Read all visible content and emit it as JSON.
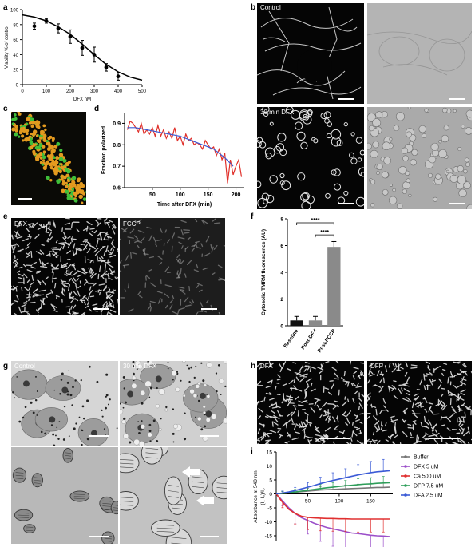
{
  "panels": {
    "a": "a",
    "b": "b",
    "c": "c",
    "d": "d",
    "e": "e",
    "f": "f",
    "g": "g",
    "h": "h",
    "i": "i"
  },
  "labels": {
    "b_top": "Control",
    "b_bottom": "30 min DFX",
    "e_left": "DFX",
    "e_right": "FCCP",
    "g_left": "Control",
    "g_right": "30 min DFX",
    "h_left": "DFA",
    "h_right": "DFP"
  },
  "chart_data": [
    {
      "panel": "a",
      "type": "scatter",
      "xlabel": "DFX nM",
      "ylabel": "Viability % of control",
      "xlim": [
        0,
        500
      ],
      "ylim": [
        0,
        100
      ],
      "xticks": [
        0,
        100,
        200,
        300,
        400,
        500
      ],
      "yticks": [
        0,
        20,
        40,
        60,
        80,
        100
      ],
      "points": [
        {
          "x": 50,
          "y": 78,
          "err": 4
        },
        {
          "x": 100,
          "y": 85,
          "err": 3
        },
        {
          "x": 150,
          "y": 75,
          "err": 6
        },
        {
          "x": 200,
          "y": 64,
          "err": 9
        },
        {
          "x": 250,
          "y": 49,
          "err": 10
        },
        {
          "x": 300,
          "y": 40,
          "err": 10
        },
        {
          "x": 350,
          "y": 23,
          "err": 5
        },
        {
          "x": 400,
          "y": 11,
          "err": 5
        }
      ],
      "fit": {
        "x": [
          0,
          50,
          100,
          150,
          200,
          250,
          300,
          350,
          400,
          450,
          500
        ],
        "y": [
          93,
          90,
          85,
          77,
          67,
          54,
          40,
          27,
          17,
          10,
          6
        ]
      }
    },
    {
      "panel": "d",
      "type": "line",
      "xlabel": "Time after DFX (min)",
      "ylabel": "Fraction polarized",
      "xlim": [
        0,
        215
      ],
      "ylim": [
        0.6,
        0.95
      ],
      "xticks": [
        50,
        100,
        150,
        200
      ],
      "yticks": [
        0.6,
        0.7,
        0.8,
        0.9
      ],
      "series": [
        {
          "color": "#e0302a",
          "x": [
            5,
            10,
            15,
            20,
            25,
            30,
            35,
            40,
            45,
            50,
            55,
            60,
            65,
            70,
            75,
            80,
            85,
            90,
            95,
            100,
            105,
            110,
            115,
            120,
            125,
            130,
            135,
            140,
            145,
            150,
            155,
            160,
            165,
            170,
            175,
            180,
            185,
            190,
            195,
            200,
            205,
            210
          ],
          "y": [
            0.87,
            0.91,
            0.9,
            0.88,
            0.86,
            0.9,
            0.85,
            0.87,
            0.85,
            0.88,
            0.84,
            0.89,
            0.84,
            0.87,
            0.83,
            0.86,
            0.83,
            0.88,
            0.82,
            0.84,
            0.8,
            0.85,
            0.82,
            0.83,
            0.8,
            0.81,
            0.8,
            0.78,
            0.82,
            0.8,
            0.78,
            0.79,
            0.75,
            0.78,
            0.73,
            0.76,
            0.62,
            0.73,
            0.66,
            0.7,
            0.73,
            0.65
          ]
        },
        {
          "color": "#3b5bd6",
          "x": [
            5,
            20,
            40,
            60,
            80,
            100,
            120,
            140,
            160,
            180,
            195
          ],
          "y": [
            0.88,
            0.88,
            0.87,
            0.86,
            0.85,
            0.84,
            0.82,
            0.8,
            0.78,
            0.74,
            0.7
          ]
        }
      ]
    },
    {
      "panel": "f",
      "type": "bar",
      "ylabel": "Cytosolic TMRM fluorescence (AU)",
      "categories": [
        "Baseline",
        "Post-DFX",
        "Post-FCCP"
      ],
      "values": [
        0.4,
        0.4,
        5.9
      ],
      "errors": [
        0.3,
        0.3,
        0.4
      ],
      "colors": [
        "#111111",
        "#8a8a8a",
        "#8a8a8a"
      ],
      "ylim": [
        0,
        8
      ],
      "yticks": [
        0,
        2,
        4,
        6,
        8
      ],
      "significance": [
        "****",
        "****"
      ]
    },
    {
      "panel": "i",
      "type": "line",
      "ylabel": "Absorbance at 540 nm",
      "ylabel2": "(I₁-I₀)/I₀",
      "xlim": [
        0,
        185
      ],
      "ylim": [
        -17,
        15
      ],
      "xticks": [
        50,
        100,
        150
      ],
      "yticks": [
        -15,
        -10,
        -5,
        0,
        5,
        10,
        15
      ],
      "series": [
        {
          "name": "Buffer",
          "color": "#777777",
          "x": [
            0,
            10,
            20,
            30,
            40,
            50,
            60,
            70,
            80,
            90,
            100,
            110,
            120,
            130,
            140,
            150,
            160,
            170,
            180
          ],
          "y": [
            0,
            0.2,
            0.4,
            0.6,
            0.8,
            1.0,
            1.2,
            1.4,
            1.5,
            1.6,
            1.7,
            1.8,
            1.9,
            2.0,
            2.1,
            2.2,
            2.3,
            2.3,
            2.4
          ]
        },
        {
          "name": "DFX 5 uM",
          "color": "#9b4fc9",
          "x": [
            0,
            10,
            20,
            30,
            40,
            50,
            60,
            70,
            80,
            90,
            100,
            110,
            120,
            130,
            140,
            150,
            160,
            170,
            180
          ],
          "y": [
            0,
            -2.5,
            -5,
            -7,
            -8.5,
            -9.5,
            -10.5,
            -11.3,
            -12,
            -12.5,
            -13,
            -13.5,
            -14,
            -14.2,
            -14.5,
            -14.8,
            -15,
            -15.1,
            -15.3
          ]
        },
        {
          "name": "Ca 500 uM",
          "color": "#e03030",
          "x": [
            0,
            10,
            20,
            30,
            40,
            50,
            60,
            70,
            80,
            90,
            100,
            110,
            120,
            130,
            140,
            150,
            160,
            170,
            180
          ],
          "y": [
            0,
            -3,
            -5.5,
            -7,
            -8,
            -8.4,
            -8.6,
            -8.7,
            -8.8,
            -8.8,
            -8.9,
            -8.9,
            -9,
            -9,
            -9,
            -9,
            -9,
            -9,
            -9
          ]
        },
        {
          "name": "DFP 7.5 uM",
          "color": "#2e9e5a",
          "x": [
            0,
            10,
            20,
            30,
            40,
            50,
            60,
            70,
            80,
            90,
            100,
            110,
            120,
            130,
            140,
            150,
            160,
            170,
            180
          ],
          "y": [
            0,
            0.2,
            0.4,
            0.7,
            1.0,
            1.3,
            1.6,
            1.9,
            2.2,
            2.4,
            2.7,
            2.9,
            3.1,
            3.3,
            3.5,
            3.6,
            3.8,
            3.9,
            4.0
          ]
        },
        {
          "name": "DFA 2.5 uM",
          "color": "#3b5bd6",
          "x": [
            0,
            10,
            20,
            30,
            40,
            50,
            60,
            70,
            80,
            90,
            100,
            110,
            120,
            130,
            140,
            150,
            160,
            170,
            180
          ],
          "y": [
            0,
            0.3,
            0.7,
            1.2,
            1.8,
            2.4,
            3.0,
            3.7,
            4.3,
            4.8,
            5.3,
            5.8,
            6.3,
            6.8,
            7.2,
            7.6,
            7.9,
            8.1,
            8.3
          ]
        }
      ],
      "legend": "right"
    }
  ]
}
